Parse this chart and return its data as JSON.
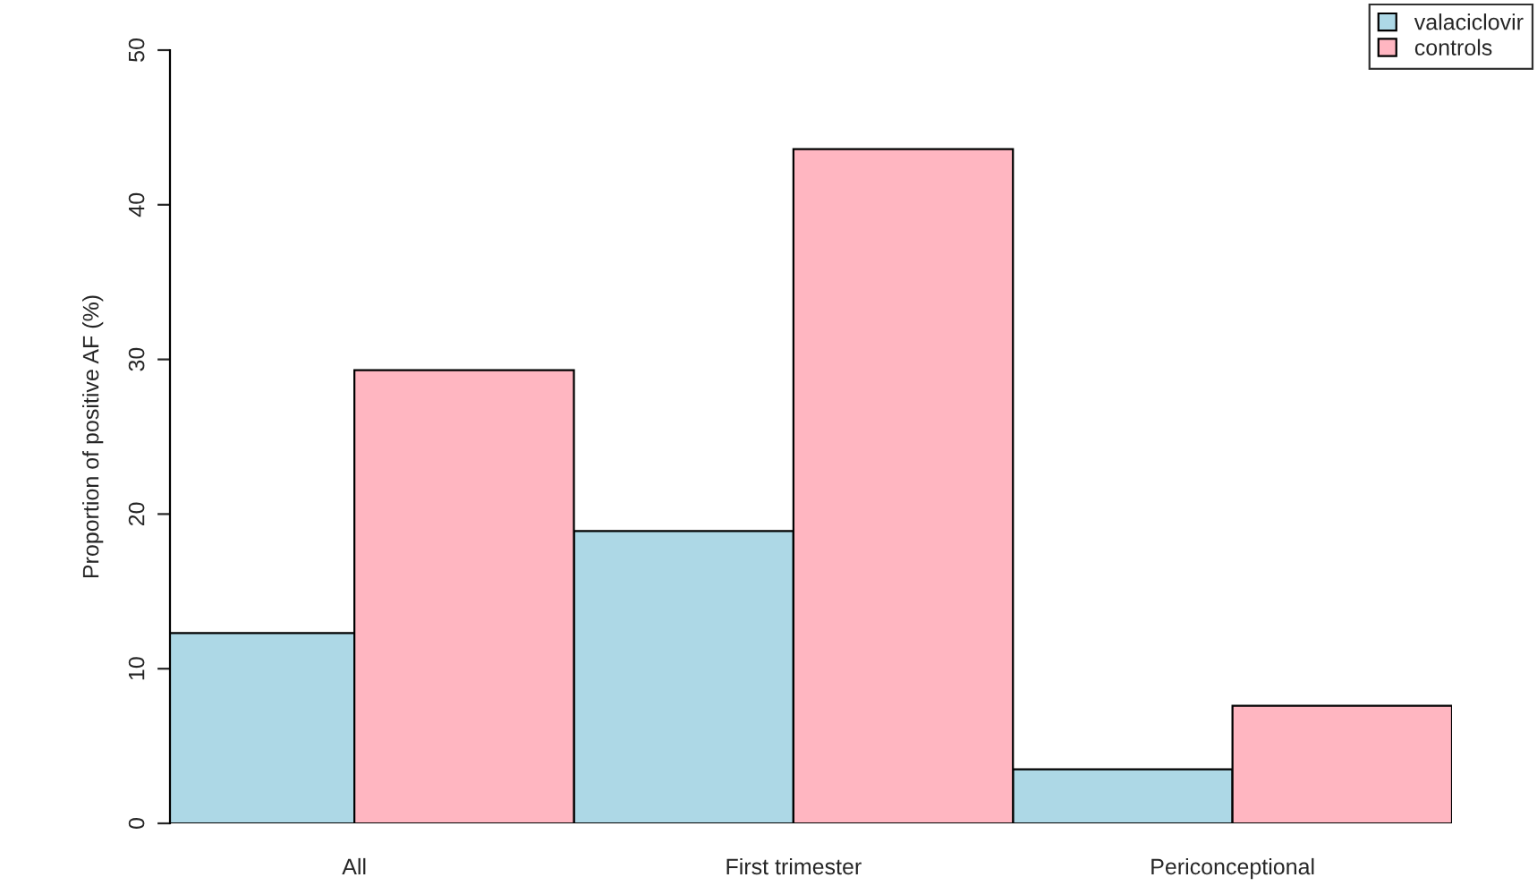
{
  "chart_data": {
    "type": "bar",
    "ylabel": "Proportion of positive AF (%)",
    "categories": [
      "All",
      "First trimester",
      "Periconceptional"
    ],
    "series": [
      {
        "name": "valaciclovir",
        "color": "#add8e6",
        "values": [
          12.3,
          18.9,
          3.5
        ]
      },
      {
        "name": "controls",
        "color": "#ffb6c1",
        "values": [
          29.3,
          43.6,
          7.6
        ]
      }
    ],
    "ylim": [
      0,
      50
    ],
    "yticks": [
      0,
      10,
      20,
      30,
      40,
      50
    ],
    "grid": false,
    "legend": "top right"
  }
}
